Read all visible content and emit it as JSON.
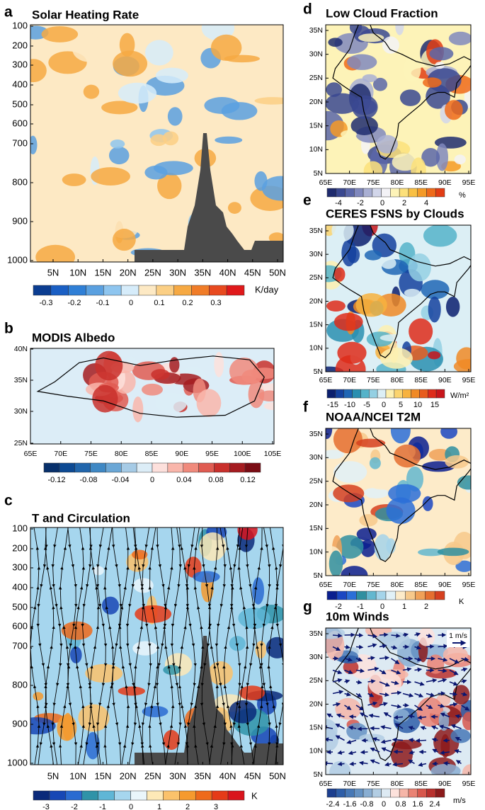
{
  "panels": [
    {
      "letter": "a",
      "title": "Solar Heating Rate",
      "y_ticks": [
        "100",
        "200",
        "300",
        "400",
        "500",
        "600",
        "700",
        "800",
        "900",
        "1000"
      ],
      "x_ticks": [
        "5N",
        "10N",
        "15N",
        "20N",
        "25N",
        "30N",
        "35N",
        "40N",
        "45N",
        "50N"
      ],
      "colorbar": {
        "labels": [
          "-0.3",
          "-0.2",
          "-0.1",
          "0",
          "0.1",
          "0.2",
          "0.3"
        ],
        "unit": "K/day",
        "colors": [
          "#0b3d91",
          "#1a5fc4",
          "#2f7fd6",
          "#5aa0e0",
          "#8ec5ef",
          "#d6ecfa",
          "#fde9c4",
          "#fbcf85",
          "#f6a943",
          "#f07c28",
          "#e84a1f",
          "#e0191b"
        ]
      }
    },
    {
      "letter": "b",
      "title": "MODIS Albedo",
      "y_ticks": [
        "40N",
        "35N",
        "30N",
        "25N"
      ],
      "x_ticks": [
        "65E",
        "70E",
        "75E",
        "80E",
        "85E",
        "90E",
        "95E",
        "100E",
        "105E"
      ],
      "colorbar": {
        "labels": [
          "-0.12",
          "-0.08",
          "-0.04",
          "0",
          "0.04",
          "0.08",
          "0.12"
        ],
        "colors": [
          "#08306b",
          "#0d4a93",
          "#2166ac",
          "#3f88c4",
          "#6ba7d6",
          "#a6cbe6",
          "#dcedf7",
          "#fde0dc",
          "#f9b6ab",
          "#f08a7c",
          "#e05c52",
          "#c9302c",
          "#a51c20",
          "#7a0c14"
        ]
      }
    },
    {
      "letter": "c",
      "title": "T and Circulation",
      "y_ticks": [
        "100",
        "200",
        "300",
        "400",
        "500",
        "600",
        "700",
        "800",
        "900",
        "1000"
      ],
      "x_ticks": [
        "5N",
        "10N",
        "15N",
        "20N",
        "25N",
        "30N",
        "35N",
        "40N",
        "45N",
        "50N"
      ],
      "colorbar": {
        "labels": [
          "-3",
          "-2",
          "-1",
          "0",
          "1",
          "2",
          "3"
        ],
        "unit": "K",
        "colors": [
          "#0b2a7a",
          "#1747b5",
          "#2a6bd1",
          "#2f93a8",
          "#5fb6d6",
          "#a6d6ee",
          "#eaf6fb",
          "#fde9b7",
          "#fbc26b",
          "#f59a2e",
          "#ee6a1b",
          "#e53b18",
          "#d9141c"
        ]
      }
    },
    {
      "letter": "d",
      "title": "Low Cloud Fraction",
      "y_ticks": [
        "35N",
        "30N",
        "25N",
        "20N",
        "15N",
        "10N",
        "5N"
      ],
      "x_ticks": [
        "65E",
        "70E",
        "75E",
        "80E",
        "85E",
        "90E",
        "95E"
      ],
      "colorbar": {
        "labels": [
          "-4",
          "-2",
          "0",
          "2",
          "4"
        ],
        "unit": "%",
        "colors": [
          "#1f2b6e",
          "#3a4890",
          "#5a66a8",
          "#8088bd",
          "#a9afd3",
          "#d2d6ea",
          "#f3f2f6",
          "#fdf3b8",
          "#fce07a",
          "#f9c044",
          "#f49a27",
          "#ee6a1a",
          "#e23d14"
        ]
      }
    },
    {
      "letter": "e",
      "title": "CERES FSNS by Clouds",
      "y_ticks": [
        "35N",
        "30N",
        "25N",
        "20N",
        "15N",
        "10N",
        "5N"
      ],
      "x_ticks": [
        "65E",
        "70E",
        "75E",
        "80E",
        "85E",
        "90E",
        "95E"
      ],
      "colorbar": {
        "labels": [
          "-15",
          "-10",
          "-5",
          "0",
          "5",
          "10",
          "15"
        ],
        "unit": "W/m²",
        "colors": [
          "#0b1f6e",
          "#14419e",
          "#1f66b5",
          "#2a8fb0",
          "#55b3c9",
          "#94d0e3",
          "#dceff5",
          "#fdf0b0",
          "#fbd46e",
          "#f7b23e",
          "#f08a26",
          "#e85c1d",
          "#de2c1a",
          "#c8151b"
        ]
      }
    },
    {
      "letter": "f",
      "title": "NOAA/NCEI T2M",
      "y_ticks": [
        "35N",
        "30N",
        "25N",
        "20N",
        "15N",
        "10N",
        "5N"
      ],
      "x_ticks": [
        "65E",
        "70E",
        "75E",
        "80E",
        "85E",
        "90E",
        "95E"
      ],
      "colorbar": {
        "labels": [
          "-2",
          "-1",
          "0",
          "1",
          "2"
        ],
        "unit": "K",
        "colors": [
          "#0a1f8f",
          "#1b47c2",
          "#2c6fd8",
          "#2f8fa0",
          "#63b7cf",
          "#a4d4ea",
          "#e1f1f8",
          "#fdebc9",
          "#f7c98b",
          "#f0a158",
          "#e56f2f",
          "#d6401f"
        ]
      }
    },
    {
      "letter": "g",
      "title": "10m Winds",
      "annotation": "1 m/s",
      "y_ticks": [
        "35N",
        "30N",
        "25N",
        "20N",
        "15N",
        "10N",
        "5N"
      ],
      "x_ticks": [
        "65E",
        "70E",
        "75E",
        "80E",
        "85E",
        "90E",
        "95E"
      ],
      "colorbar": {
        "labels": [
          "-2.4",
          "-1.6",
          "-0.8",
          "0",
          "0.8",
          "1.6",
          "2.4"
        ],
        "unit": "m/s",
        "colors": [
          "#1c3f8f",
          "#2e5ea8",
          "#4778b6",
          "#6592c3",
          "#89aed2",
          "#b2cde3",
          "#ddeaf3",
          "#fde2dc",
          "#f6b6a8",
          "#ea8374",
          "#d7574c",
          "#b8302d",
          "#8c1a1b"
        ]
      }
    }
  ]
}
